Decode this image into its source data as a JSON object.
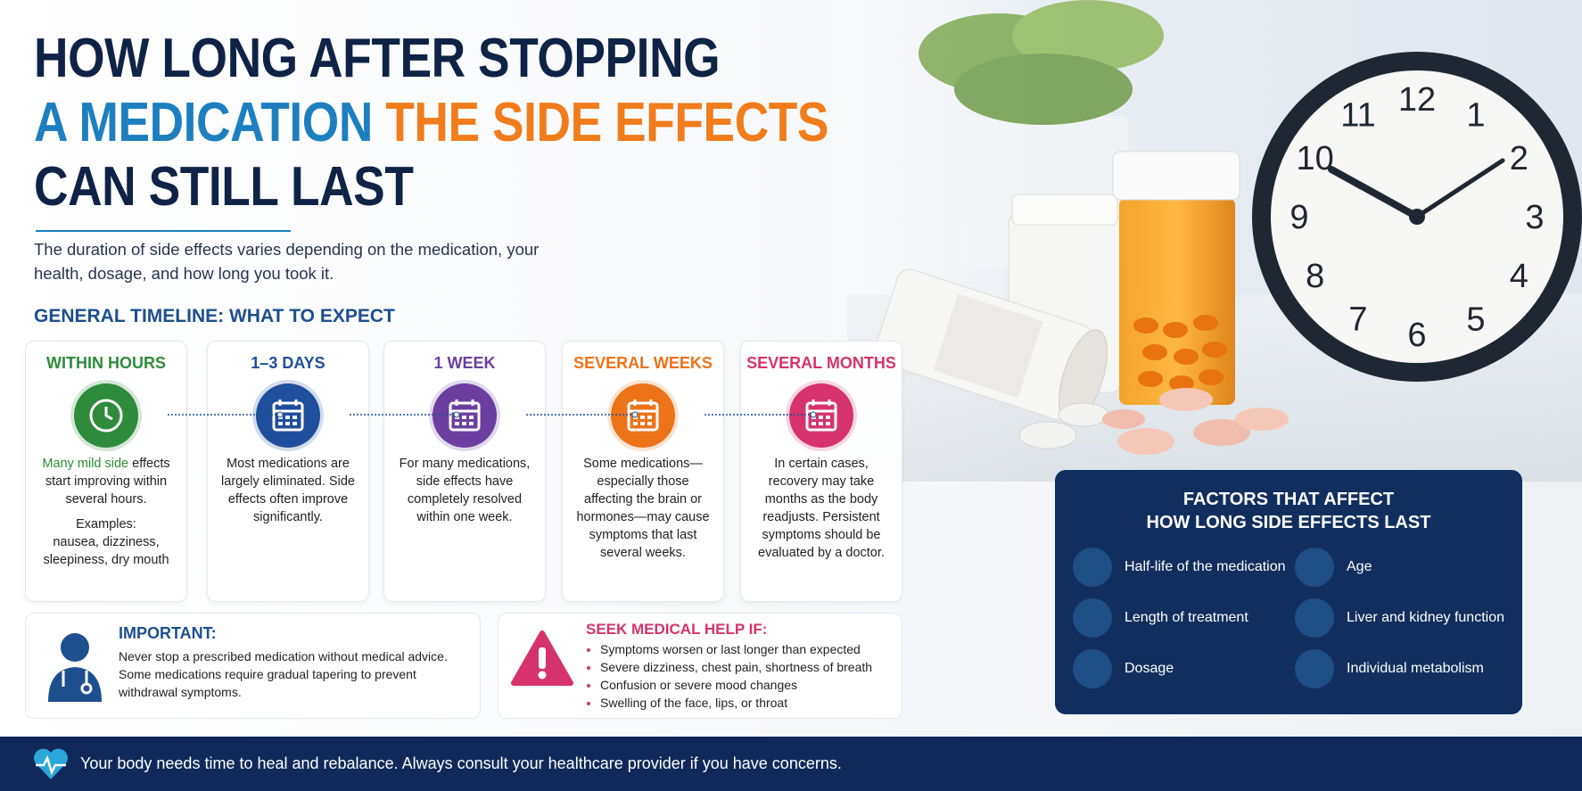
{
  "header": {
    "title": {
      "line1": "HOW LONG AFTER STOPPING",
      "line2a": "A MEDICATION",
      "line2b": "THE SIDE EFFECTS",
      "line3": "CAN STILL LAST"
    },
    "subtitle": "The duration of side effects varies depending on the medication, your health, dosage, and how long you took it."
  },
  "timeline": {
    "heading": "GENERAL TIMELINE: WHAT TO EXPECT",
    "stages": [
      {
        "title": "WITHIN HOURS",
        "highlight": "Many mild side",
        "text": "effects start improving within several hours.",
        "examples_label": "Examples:",
        "examples": "nausea, dizziness, sleepiness, dry mouth"
      },
      {
        "title": "1–3 DAYS",
        "text": "Most medications are largely eliminated. Side effects often improve significantly."
      },
      {
        "title": "1 WEEK",
        "text": "For many medications, side effects have completely resolved within one week."
      },
      {
        "title": "SEVERAL WEEKS",
        "text": "Some medications—especially those affecting the brain or hormones—may cause symptoms that last several weeks."
      },
      {
        "title": "SEVERAL MONTHS",
        "text": "In certain cases, recovery may take months as the body readjusts. Persistent symptoms should be evaluated by a doctor."
      }
    ]
  },
  "important": {
    "title": "IMPORTANT:",
    "text": "Never stop a prescribed medication without medical advice. Some medications require gradual tapering to prevent withdrawal symptoms."
  },
  "seek_help": {
    "title": "SEEK MEDICAL HELP IF:",
    "items": [
      "Symptoms worsen or last longer than expected",
      "Severe dizziness, chest pain, shortness of breath",
      "Confusion or severe mood changes",
      "Swelling of the face, lips, or throat"
    ]
  },
  "factors": {
    "title": [
      "FACTORS THAT AFFECT",
      "HOW LONG SIDE EFFECTS LAST"
    ],
    "items": [
      "Half-life of the medication",
      "Age",
      "Length of treatment",
      "Liver and kidney function",
      "Dosage",
      "Individual metabolism"
    ]
  },
  "photo": {
    "clock_numbers": [
      "12",
      "1",
      "2",
      "3",
      "4",
      "5",
      "6",
      "7",
      "8",
      "9",
      "10",
      "11"
    ]
  },
  "footer": "Your body needs time to heal and rebalance. Always consult your healthcare provider if you have concerns."
}
